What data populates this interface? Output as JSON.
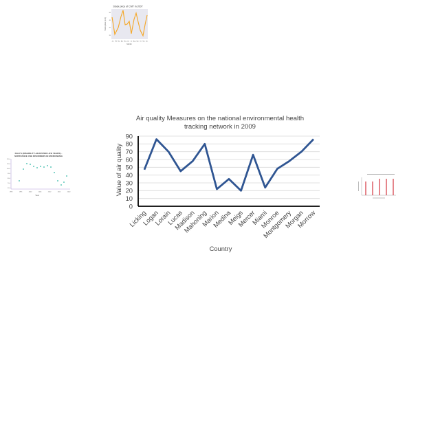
{
  "thumbnails": {
    "stock": {
      "title": "Stock price of CMT in 2007",
      "ylabel": "Stock price (in $)",
      "xlabel": "Month",
      "line_color": "#f5a623",
      "bg_color": "#e8e8f0",
      "x_ticks": [
        "Jan",
        "Feb",
        "Mar",
        "Apr",
        "May",
        "Jun",
        "Jul",
        "Aug",
        "Sep",
        "Oct",
        "Nov",
        "Dec"
      ],
      "y_ticks": [
        "20",
        "30",
        "40",
        "50"
      ]
    },
    "daly": {
      "title_lines": [
        "DALYS (DISABILITY-ADJUSTED LIFE YEARS) -",
        "SUBSTANCE USE DISORDERS IN MICRONESIA"
      ],
      "xlabel": "Year",
      "point_color": "#2bb5a4",
      "axis_color": "#b39ddb",
      "x_ticks": [
        "1990",
        "1995",
        "2000",
        "2005",
        "2010",
        "2015",
        "2020"
      ],
      "y_ticks": [
        "60.0",
        "70.0",
        "80.0",
        "90.0",
        "100.0",
        "110.0",
        "120.0"
      ]
    },
    "bars": {
      "title": "",
      "bar_color": "#d0202b"
    }
  },
  "chart_data": {
    "type": "line",
    "title_lines": [
      "Air quality Measures on the national environmental health",
      "tracking network in 2009"
    ],
    "xlabel": "Country",
    "ylabel": "Value of air quality",
    "categories": [
      "Licking",
      "Logan",
      "Lorain",
      "Lucas",
      "Madison",
      "Mahoning",
      "Marion",
      "Medina",
      "Meigs",
      "Mercer",
      "Miami",
      "Monroe",
      "Montgomery",
      "Morgan",
      "Morrow"
    ],
    "values": [
      47,
      86,
      70,
      45,
      58,
      80,
      22,
      35,
      20,
      66,
      24,
      48,
      58,
      70,
      86
    ],
    "ylim": [
      0,
      90
    ],
    "y_ticks": [
      "0",
      "10",
      "20",
      "30",
      "40",
      "50",
      "60",
      "70",
      "80",
      "90"
    ],
    "grid": true,
    "line_color": "#2f5592"
  }
}
